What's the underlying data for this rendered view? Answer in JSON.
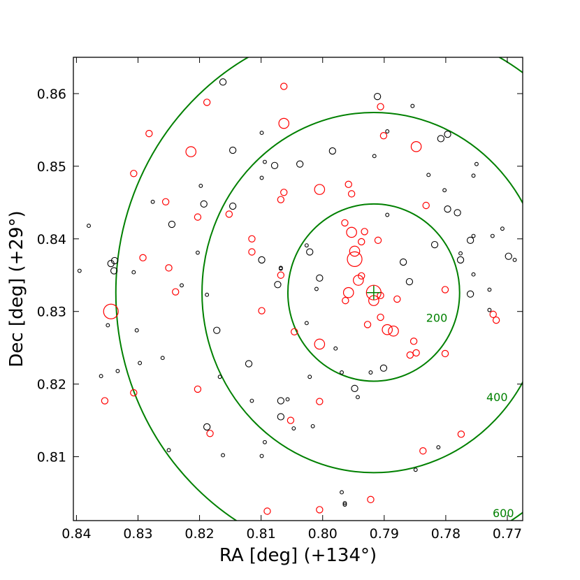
{
  "chart_data": {
    "type": "scatter",
    "title": "",
    "xlabel": "RA [deg] (+134°)",
    "ylabel": "Dec [deg] (+29°)",
    "xlim": [
      0.8405,
      0.7675
    ],
    "ylim": [
      0.8012,
      0.865
    ],
    "x_ticks": [
      0.84,
      0.83,
      0.82,
      0.81,
      0.8,
      0.79,
      0.78,
      0.77
    ],
    "x_tick_labels": [
      "0.84",
      "0.83",
      "0.82",
      "0.81",
      "0.80",
      "0.79",
      "0.78",
      "0.77"
    ],
    "y_ticks": [
      0.81,
      0.82,
      0.83,
      0.84,
      0.85,
      0.86
    ],
    "y_tick_labels": [
      "0.81",
      "0.82",
      "0.83",
      "0.84",
      "0.85",
      "0.86"
    ],
    "grid": false,
    "center": {
      "ra": 0.7917,
      "dec": 0.8326,
      "marker": "plus",
      "color": "#008000"
    },
    "rings": [
      {
        "label": "200",
        "rx_deg": 0.01395,
        "ry_deg": 0.0122,
        "color": "#008000"
      },
      {
        "label": "400",
        "rx_deg": 0.0279,
        "ry_deg": 0.0248,
        "color": "#008000"
      },
      {
        "label": "600",
        "rx_deg": 0.0419,
        "ry_deg": 0.0371,
        "color": "#008000"
      }
    ],
    "series": [
      {
        "color": "#ff0000",
        "points": [
          [
            0.7917,
            0.8326,
            3
          ],
          [
            0.7948,
            0.8372,
            3
          ],
          [
            0.7958,
            0.8326,
            2
          ],
          [
            0.7953,
            0.8409,
            2
          ],
          [
            0.7948,
            0.8383,
            2
          ],
          [
            0.7937,
            0.8349,
            1
          ],
          [
            0.7942,
            0.8343,
            2
          ],
          [
            0.7937,
            0.8396,
            1
          ],
          [
            0.791,
            0.8398,
            1
          ],
          [
            0.7927,
            0.8282,
            1
          ],
          [
            0.7917,
            0.8315,
            2
          ],
          [
            0.7906,
            0.8322,
            1
          ],
          [
            0.7906,
            0.8292,
            1
          ],
          [
            0.7895,
            0.8275,
            2
          ],
          [
            0.7885,
            0.8273,
            2
          ],
          [
            0.7879,
            0.8317,
            1
          ],
          [
            0.7848,
            0.8243,
            1
          ],
          [
            0.7858,
            0.824,
            1
          ],
          [
            0.7852,
            0.8259,
            1
          ],
          [
            0.7963,
            0.8315,
            1
          ],
          [
            0.7964,
            0.8422,
            1
          ],
          [
            0.7932,
            0.841,
            1
          ],
          [
            0.7958,
            0.8475,
            1
          ],
          [
            0.7953,
            0.8462,
            1
          ],
          [
            0.8005,
            0.8468,
            2
          ],
          [
            0.8005,
            0.8255,
            2
          ],
          [
            0.8063,
            0.8559,
            2
          ],
          [
            0.8063,
            0.861,
            1
          ],
          [
            0.8063,
            0.8464,
            1
          ],
          [
            0.8068,
            0.8454,
            1
          ],
          [
            0.8068,
            0.835,
            1
          ],
          [
            0.8046,
            0.8272,
            1
          ],
          [
            0.8099,
            0.8301,
            1
          ],
          [
            0.8115,
            0.84,
            1
          ],
          [
            0.8115,
            0.8382,
            1
          ],
          [
            0.8152,
            0.8434,
            1
          ],
          [
            0.8188,
            0.8588,
            1
          ],
          [
            0.8214,
            0.852,
            2
          ],
          [
            0.8203,
            0.843,
            1
          ],
          [
            0.8239,
            0.8327,
            1
          ],
          [
            0.8255,
            0.8451,
            1
          ],
          [
            0.825,
            0.836,
            1
          ],
          [
            0.8282,
            0.8545,
            1
          ],
          [
            0.8307,
            0.849,
            1
          ],
          [
            0.8292,
            0.8374,
            1
          ],
          [
            0.8344,
            0.83,
            3
          ],
          [
            0.8354,
            0.8177,
            1
          ],
          [
            0.8307,
            0.8188,
            1
          ],
          [
            0.8203,
            0.8193,
            1
          ],
          [
            0.8183,
            0.8132,
            1
          ],
          [
            0.8052,
            0.815,
            1
          ],
          [
            0.8005,
            0.8176,
            1
          ],
          [
            0.809,
            0.8025,
            1
          ],
          [
            0.8005,
            0.8027,
            1
          ],
          [
            0.7922,
            0.8041,
            1
          ],
          [
            0.7906,
            0.8582,
            1
          ],
          [
            0.7901,
            0.8542,
            1
          ],
          [
            0.7848,
            0.8527,
            2
          ],
          [
            0.7832,
            0.8446,
            1
          ],
          [
            0.7801,
            0.833,
            1
          ],
          [
            0.7801,
            0.8242,
            1
          ],
          [
            0.7723,
            0.8296,
            1
          ],
          [
            0.7718,
            0.8288,
            1
          ],
          [
            0.7775,
            0.8131,
            1
          ],
          [
            0.7837,
            0.8108,
            1
          ]
        ]
      },
      {
        "color": "#000000",
        "points": [
          [
            0.8395,
            0.8356,
            0
          ],
          [
            0.838,
            0.8418,
            0
          ],
          [
            0.8338,
            0.837,
            1
          ],
          [
            0.8344,
            0.8366,
            1
          ],
          [
            0.8339,
            0.8356,
            1
          ],
          [
            0.8349,
            0.8281,
            0
          ],
          [
            0.836,
            0.8211,
            0
          ],
          [
            0.8333,
            0.8218,
            0
          ],
          [
            0.8307,
            0.8354,
            0
          ],
          [
            0.8302,
            0.8274,
            0
          ],
          [
            0.8297,
            0.8229,
            0
          ],
          [
            0.8276,
            0.8451,
            0
          ],
          [
            0.826,
            0.8236,
            0
          ],
          [
            0.825,
            0.8109,
            0
          ],
          [
            0.8245,
            0.842,
            1
          ],
          [
            0.8229,
            0.8336,
            0
          ],
          [
            0.8203,
            0.8381,
            0
          ],
          [
            0.8198,
            0.8473,
            0
          ],
          [
            0.8193,
            0.8448,
            1
          ],
          [
            0.8188,
            0.8323,
            0
          ],
          [
            0.8188,
            0.8141,
            1
          ],
          [
            0.8172,
            0.8274,
            1
          ],
          [
            0.8167,
            0.821,
            0
          ],
          [
            0.8162,
            0.8102,
            0
          ],
          [
            0.8162,
            0.8616,
            1
          ],
          [
            0.8146,
            0.8445,
            1
          ],
          [
            0.8146,
            0.8522,
            1
          ],
          [
            0.812,
            0.8228,
            1
          ],
          [
            0.8115,
            0.8177,
            0
          ],
          [
            0.8099,
            0.8546,
            0
          ],
          [
            0.8099,
            0.8484,
            0
          ],
          [
            0.8099,
            0.8371,
            1
          ],
          [
            0.8094,
            0.8506,
            0
          ],
          [
            0.8094,
            0.812,
            0
          ],
          [
            0.8099,
            0.8101,
            0
          ],
          [
            0.8078,
            0.8501,
            1
          ],
          [
            0.8073,
            0.8337,
            1
          ],
          [
            0.8068,
            0.836,
            0
          ],
          [
            0.8068,
            0.8359,
            0
          ],
          [
            0.8068,
            0.8177,
            1
          ],
          [
            0.8068,
            0.8155,
            1
          ],
          [
            0.8057,
            0.8179,
            0
          ],
          [
            0.8047,
            0.8139,
            0
          ],
          [
            0.8037,
            0.8503,
            1
          ],
          [
            0.8026,
            0.8391,
            0
          ],
          [
            0.8021,
            0.8382,
            1
          ],
          [
            0.8026,
            0.8284,
            0
          ],
          [
            0.8021,
            0.821,
            0
          ],
          [
            0.8016,
            0.8142,
            0
          ],
          [
            0.8005,
            0.8346,
            1
          ],
          [
            0.801,
            0.8331,
            0
          ],
          [
            0.7984,
            0.8521,
            1
          ],
          [
            0.7979,
            0.8249,
            0
          ],
          [
            0.7969,
            0.8216,
            0
          ],
          [
            0.7969,
            0.8051,
            0
          ],
          [
            0.7964,
            0.8036,
            0
          ],
          [
            0.7964,
            0.8034,
            0
          ],
          [
            0.7948,
            0.8194,
            1
          ],
          [
            0.7943,
            0.8182,
            0
          ],
          [
            0.7922,
            0.8216,
            0
          ],
          [
            0.7916,
            0.8514,
            0
          ],
          [
            0.7911,
            0.8596,
            1
          ],
          [
            0.7901,
            0.8222,
            1
          ],
          [
            0.7895,
            0.8433,
            0
          ],
          [
            0.7895,
            0.8548,
            0
          ],
          [
            0.7869,
            0.8368,
            1
          ],
          [
            0.7859,
            0.8341,
            1
          ],
          [
            0.7854,
            0.8583,
            0
          ],
          [
            0.7828,
            0.8488,
            0
          ],
          [
            0.7818,
            0.8392,
            1
          ],
          [
            0.7812,
            0.8113,
            0
          ],
          [
            0.7808,
            0.8538,
            1
          ],
          [
            0.7802,
            0.8467,
            0
          ],
          [
            0.7797,
            0.8544,
            1
          ],
          [
            0.7797,
            0.8441,
            1
          ],
          [
            0.7781,
            0.8436,
            1
          ],
          [
            0.7776,
            0.838,
            0
          ],
          [
            0.7776,
            0.8371,
            1
          ],
          [
            0.776,
            0.8398,
            1
          ],
          [
            0.776,
            0.8324,
            1
          ],
          [
            0.7755,
            0.8404,
            0
          ],
          [
            0.7755,
            0.8487,
            0
          ],
          [
            0.7755,
            0.8351,
            0
          ],
          [
            0.775,
            0.8503,
            0
          ],
          [
            0.7729,
            0.833,
            0
          ],
          [
            0.7729,
            0.8302,
            0
          ],
          [
            0.7724,
            0.8404,
            0
          ],
          [
            0.7708,
            0.8414,
            0
          ],
          [
            0.7698,
            0.8376,
            1
          ],
          [
            0.7688,
            0.8371,
            0
          ],
          [
            0.7849,
            0.8082,
            0
          ]
        ]
      }
    ],
    "size_scale_px": [
      2.4,
      4.6,
      7.2,
      10.5
    ]
  }
}
